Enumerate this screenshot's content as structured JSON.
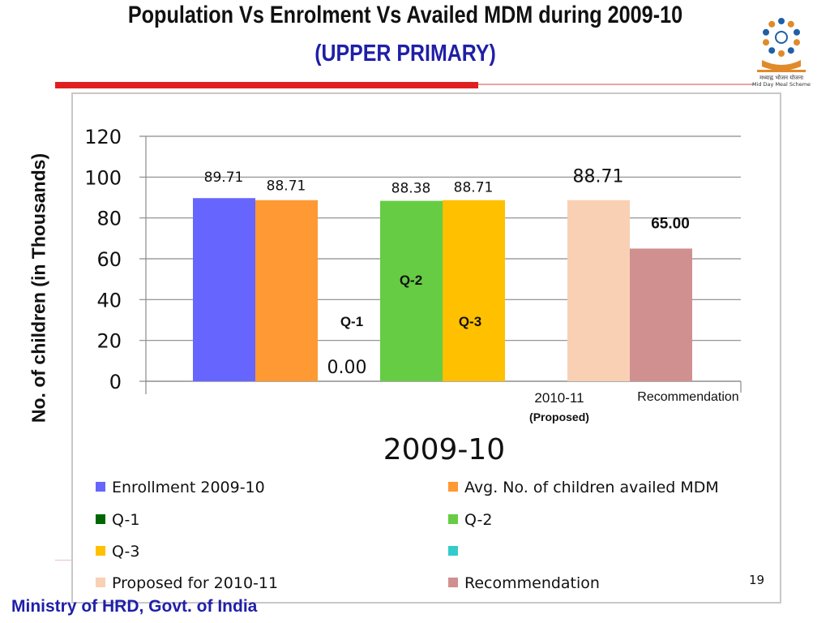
{
  "header": {
    "title": "Population Vs Enrolment Vs Availed MDM during  2009-10",
    "subtitle": "(UPPER PRIMARY)",
    "subtitle_color": "#1f1fa8",
    "rule_color": "#e02020",
    "logo_icon": "mid-day-meal-logo-icon",
    "logo_caption_1": "मध्याह्न भोजन योजना",
    "logo_caption_2": "Mid Day Meal Scheme"
  },
  "chart_data": {
    "type": "bar",
    "title": "",
    "ylabel": "No. of children (in Thousands)",
    "xlabel": "2009-10",
    "ylim": [
      0,
      120
    ],
    "yticks": [
      "0",
      "20",
      "40",
      "60",
      "80",
      "100",
      "120"
    ],
    "grid": true,
    "legend_position": "bottom",
    "categories": [
      "",
      "2010-11",
      "Recommendation"
    ],
    "category_sublabels": [
      "",
      "(Proposed)",
      ""
    ],
    "series": [
      {
        "name": "Enrollment 2009-10",
        "color": "#6666ff",
        "x": 0,
        "value": 89.71,
        "label": "89.71"
      },
      {
        "name": "Avg. No. of children availed MDM",
        "color": "#ff9933",
        "x": 1,
        "value": 88.71,
        "label": "88.71"
      },
      {
        "name": "Q-1",
        "color": "#006600",
        "x": 2,
        "value": 0,
        "label": "0.00",
        "inner_label": "Q-1"
      },
      {
        "name": "Q-2",
        "color": "#66cc44",
        "x": 3,
        "value": 88.38,
        "label": "88.38",
        "inner_label": "Q-2"
      },
      {
        "name": "Q-3",
        "color": "#ffc000",
        "x": 4,
        "value": 88.71,
        "label": "88.71",
        "inner_label": "Q-3"
      },
      {
        "name": "",
        "color": "#33cccc",
        "x": 5,
        "value": 0
      },
      {
        "name": "Proposed for 2010-11",
        "color": "#f9d0b4",
        "x": 6,
        "value": 88.71,
        "label": "88.71"
      },
      {
        "name": "Recommendation",
        "color": "#d09090",
        "x": 7,
        "value": 65.0,
        "label": "65.00"
      }
    ]
  },
  "page_number": "19",
  "footer": "Ministry of HRD, Govt. of India"
}
